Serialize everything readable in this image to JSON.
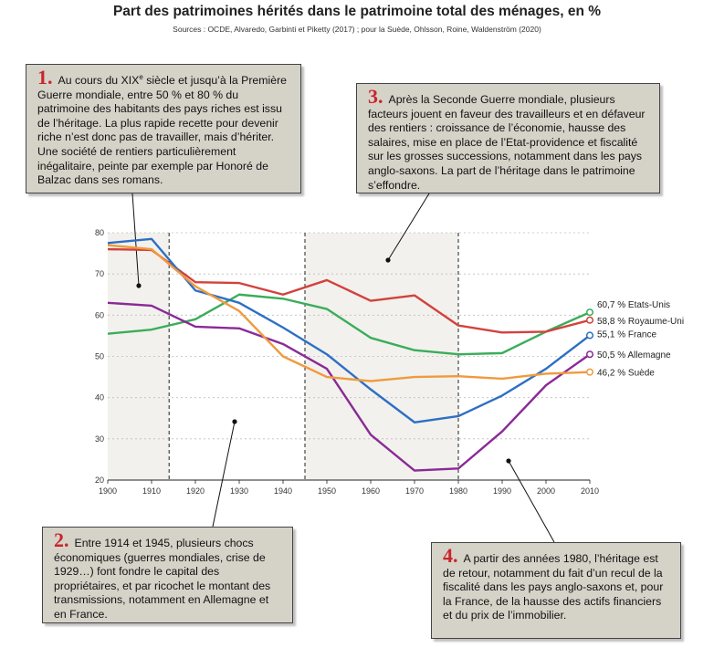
{
  "title": "Part des patrimoines hérités dans le patrimoine total des ménages, en %",
  "sources": "Sources : OCDE, Alvaredo, Garbinti et Piketty (2017) ; pour la Suède, Ohlsson, Roine, Waldenström (2020)",
  "annotations": [
    {
      "num": "1.",
      "text": "Au cours du XIXe siècle et jusqu’à la Première Guerre mondiale, entre 50 % et 80 % du patrimoine des habitants des pays riches est issu de l’héritage. La plus rapide recette pour devenir riche n’est donc pas de travailler, mais d’hériter. Une société de rentiers particulièrement inégalitaire, peinte par exemple par Honoré de Balzac dans ses romans."
    },
    {
      "num": "2.",
      "text": "Entre 1914 et 1945, plusieurs chocs économiques (guerres mondiales, crise de 1929…) font fondre le capital des propriétaires, et par ricochet le montant des transmissions, notamment en Allemagne et en France."
    },
    {
      "num": "3.",
      "text": "Après la Seconde Guerre mondiale, plusieurs facteurs jouent en faveur des travailleurs et en défaveur des rentiers : croissance de l’économie, hausse des salaires, mise en place de l’Etat-providence et fiscalité sur les grosses successions, notamment dans les pays anglo-saxons. La part de l’héritage dans le patrimoine s’effondre."
    },
    {
      "num": "4.",
      "text": "A partir des années 1980, l’héritage est de retour, notamment du fait d’un recul de la fiscalité dans les pays anglo-saxons et, pour la France, de la hausse des actifs financiers et du prix de l’immobilier."
    }
  ],
  "chart_data": {
    "type": "line",
    "title": "Part des patrimoines hérités dans le patrimoine total des ménages, en %",
    "xlim": [
      1900,
      2010
    ],
    "ylim": [
      20,
      80
    ],
    "xticks": [
      1900,
      1910,
      1920,
      1930,
      1940,
      1950,
      1960,
      1970,
      1980,
      1990,
      2000,
      2010
    ],
    "yticks": [
      20,
      30,
      40,
      50,
      60,
      70,
      80
    ],
    "vlines": [
      1914,
      1945,
      1980
    ],
    "series": [
      {
        "name": "Etats-Unis",
        "label": "60,7 % Etats-Unis",
        "color": "#3aad5a",
        "x": [
          1900,
          1910,
          1920,
          1930,
          1940,
          1950,
          1960,
          1970,
          1980,
          1990,
          2000,
          2010
        ],
        "y": [
          55.5,
          56.5,
          59,
          65,
          64,
          61.5,
          54.5,
          51.5,
          50.5,
          50.8,
          56,
          60.7
        ]
      },
      {
        "name": "Royaume-Uni",
        "label": "58,8 % Royaume-Uni",
        "color": "#d2423c",
        "x": [
          1900,
          1910,
          1920,
          1930,
          1940,
          1950,
          1960,
          1970,
          1980,
          1990,
          2000,
          2010
        ],
        "y": [
          76,
          75.8,
          68,
          67.8,
          65,
          68.5,
          63.5,
          64.8,
          57.5,
          55.8,
          56,
          58.8
        ]
      },
      {
        "name": "France",
        "label": "55,1 % France",
        "color": "#2d6fc4",
        "x": [
          1900,
          1910,
          1920,
          1930,
          1940,
          1950,
          1960,
          1970,
          1980,
          1990,
          2000,
          2010
        ],
        "y": [
          77.5,
          78.5,
          66,
          63,
          57,
          50.5,
          42,
          34,
          35.5,
          40.5,
          47,
          55.1
        ]
      },
      {
        "name": "Allemagne",
        "label": "50,5 % Allemagne",
        "color": "#8a2a96",
        "x": [
          1900,
          1910,
          1920,
          1930,
          1940,
          1950,
          1960,
          1970,
          1980,
          1990,
          2000,
          2010
        ],
        "y": [
          63,
          62.3,
          57.2,
          56.8,
          53,
          47,
          31,
          22.3,
          22.8,
          31.8,
          43,
          50.5
        ]
      },
      {
        "name": "Suède",
        "label": "46,2 % Suède",
        "color": "#f09a3e",
        "x": [
          1900,
          1910,
          1920,
          1930,
          1940,
          1950,
          1960,
          1970,
          1980,
          1990,
          2000,
          2010
        ],
        "y": [
          77,
          76,
          67,
          61,
          50,
          45,
          44,
          45,
          45.2,
          44.6,
          45.8,
          46.2
        ]
      }
    ]
  }
}
